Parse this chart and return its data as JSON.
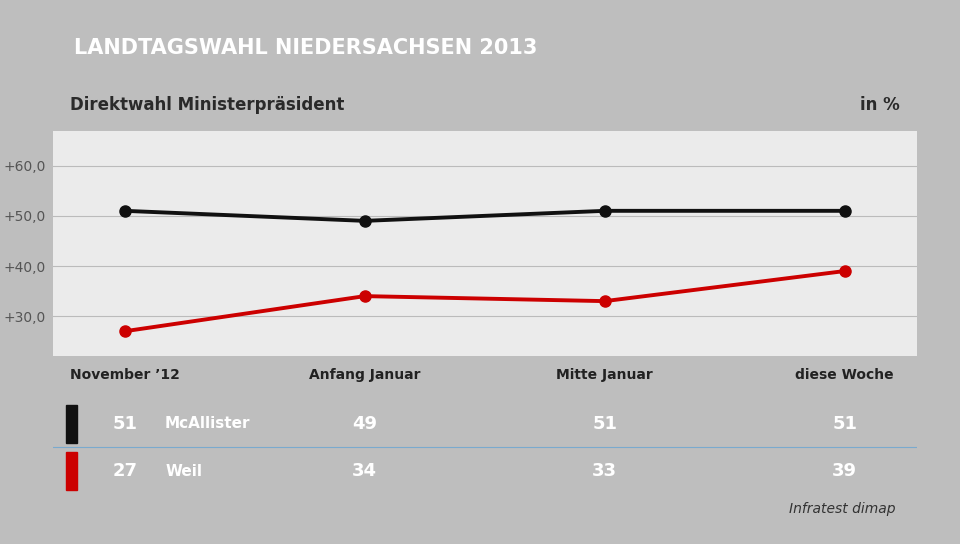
{
  "title": "LANDTAGSWAHL NIEDERSACHSEN 2013",
  "subtitle": "Direktwahl Ministerpräsident",
  "subtitle_right": "in %",
  "title_bg": "#1e3d6e",
  "subtitle_bg": "#f0f0f0",
  "chart_bg": "#ebebeb",
  "outer_bg": "#bebebe",
  "x_labels": [
    "November ’12",
    "Anfang Januar",
    "Mitte Januar",
    "diese Woche"
  ],
  "mcallister_values": [
    51,
    49,
    51,
    51
  ],
  "weil_values": [
    27,
    34,
    33,
    39
  ],
  "mcallister_color": "#111111",
  "weil_color": "#cc0000",
  "y_ticks": [
    30.0,
    40.0,
    50.0,
    60.0
  ],
  "y_tick_labels": [
    "+30,0",
    "+40,0",
    "+50,0",
    "+60,0"
  ],
  "ylim": [
    22,
    67
  ],
  "table_bg": "#4a7aaa",
  "source_text": "Infratest dimap",
  "mcallister_label": "McAllister",
  "weil_label": "Weil",
  "mcallister_indicator_color": "#111111",
  "weil_indicator_color": "#cc0000",
  "fig_width": 9.6,
  "fig_height": 5.44
}
